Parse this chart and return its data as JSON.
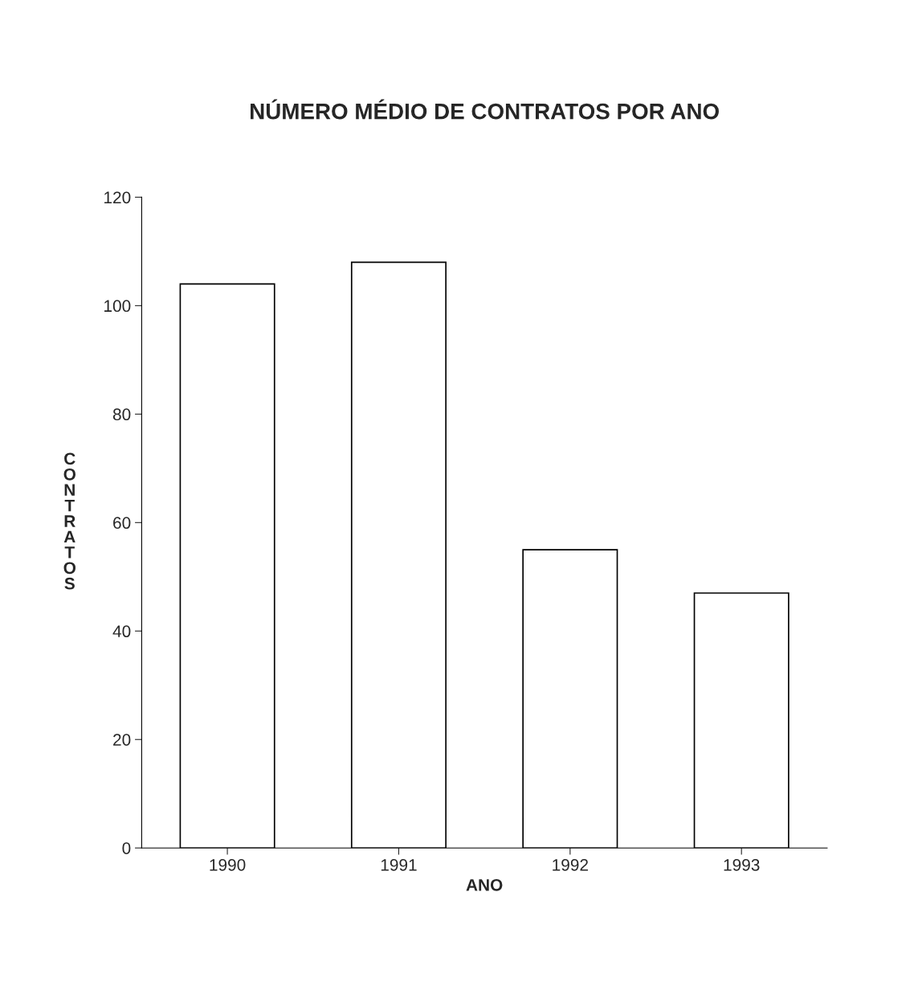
{
  "chart_data": {
    "type": "bar",
    "title": "NÚMERO MÉDIO DE CONTRATOS POR ANO",
    "xlabel": "ANO",
    "ylabel": "CONTRATOS",
    "categories": [
      "1990",
      "1991",
      "1992",
      "1993"
    ],
    "values": [
      104,
      108,
      55,
      47
    ],
    "color": "#ffffff",
    "ylim": [
      0,
      120
    ],
    "yticks": [
      0,
      20,
      40,
      60,
      80,
      100,
      120
    ],
    "grid": false
  }
}
